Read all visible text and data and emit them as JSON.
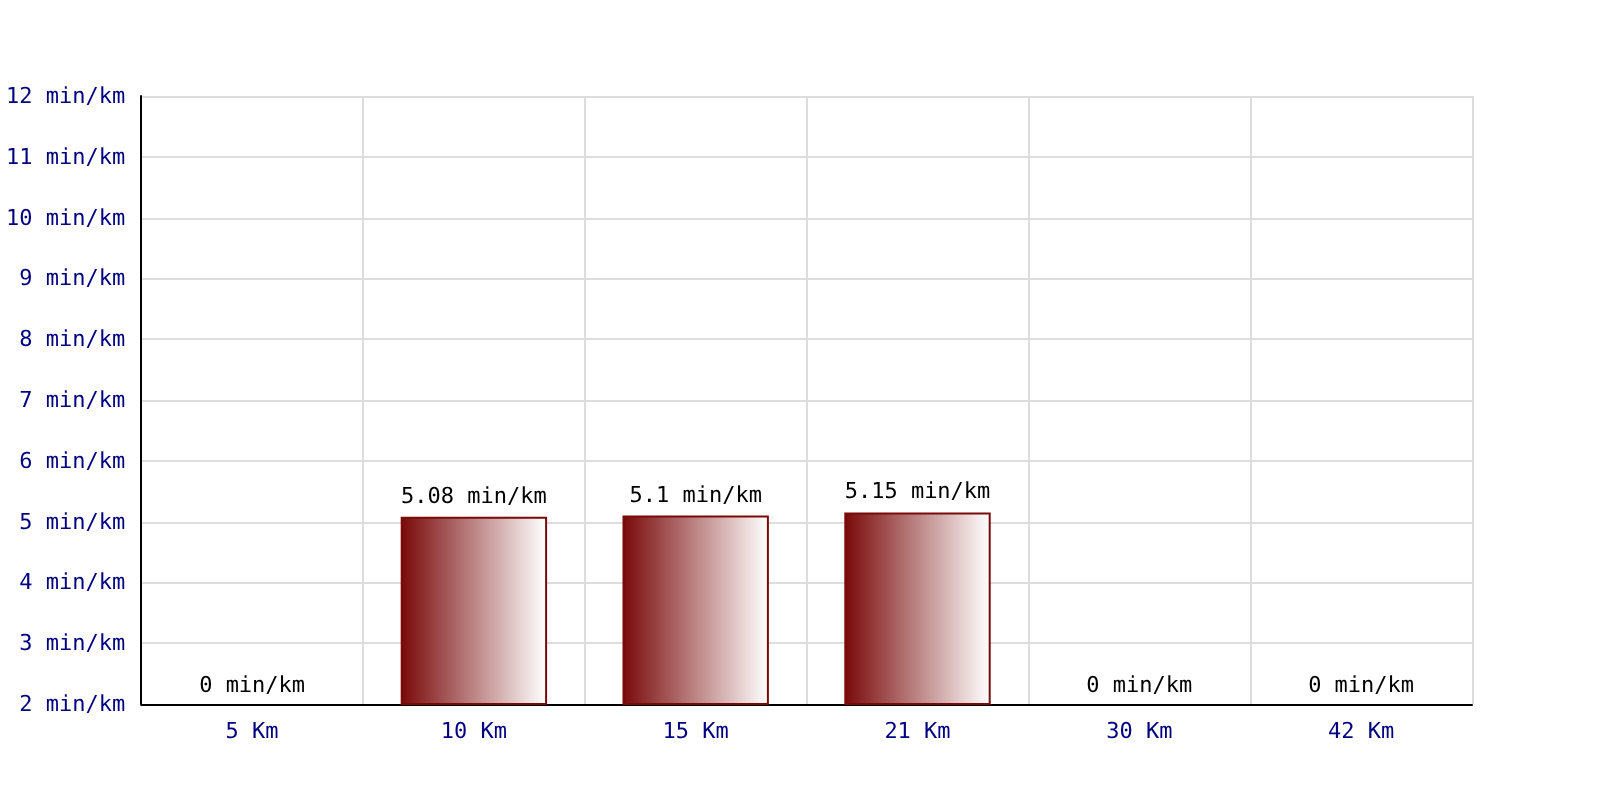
{
  "chart_data": {
    "type": "bar",
    "categories": [
      "5 Km",
      "10 Km",
      "15 Km",
      "21 Km",
      "30 Km",
      "42 Km"
    ],
    "values": [
      null,
      5.08,
      5.1,
      5.15,
      null,
      null
    ],
    "value_labels": [
      "0 min/km",
      "5.08 min/km",
      "5.1 min/km",
      "5.15 min/km",
      "0 min/km",
      "0 min/km"
    ],
    "color": "#7a0a0a",
    "ylim": [
      2,
      12
    ],
    "yticks": [
      {
        "value": 2,
        "label": "2 min/km"
      },
      {
        "value": 3,
        "label": "3 min/km"
      },
      {
        "value": 4,
        "label": "4 min/km"
      },
      {
        "value": 5,
        "label": "5 min/km"
      },
      {
        "value": 6,
        "label": "6 min/km"
      },
      {
        "value": 7,
        "label": "7 min/km"
      },
      {
        "value": 8,
        "label": "8 min/km"
      },
      {
        "value": 9,
        "label": "9 min/km"
      },
      {
        "value": 10,
        "label": "10 min/km"
      },
      {
        "value": 11,
        "label": "11 min/km"
      },
      {
        "value": 12,
        "label": "12 min/km"
      }
    ],
    "grid": true
  }
}
